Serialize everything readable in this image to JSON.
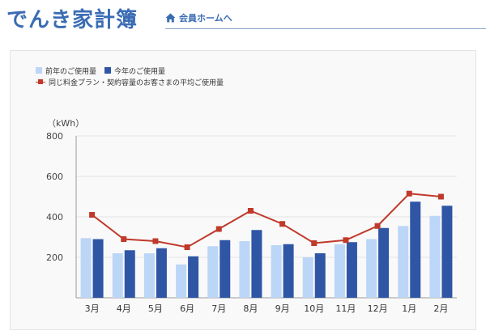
{
  "app": {
    "title": "でんき家計簿",
    "member_link": "会員ホームへ",
    "home_icon": "home-icon"
  },
  "colors": {
    "brand": "#3a6cb4",
    "prev_year": "#bcd6f7",
    "this_year": "#2f56a5",
    "average": "#c0392b"
  },
  "chart_data": {
    "type": "bar",
    "unit_label": "（kWh）",
    "categories": [
      "3月",
      "4月",
      "5月",
      "6月",
      "7月",
      "8月",
      "9月",
      "10月",
      "11月",
      "12月",
      "1月",
      "2月"
    ],
    "ylim": [
      0,
      800
    ],
    "yticks": [
      200,
      400,
      600,
      800
    ],
    "grid": true,
    "legend_position": "top-left",
    "series": [
      {
        "name": "前年のご使用量",
        "kind": "bar",
        "values": [
          295,
          220,
          220,
          165,
          255,
          280,
          260,
          200,
          265,
          290,
          355,
          405
        ]
      },
      {
        "name": "今年のご使用量",
        "kind": "bar",
        "values": [
          290,
          235,
          245,
          205,
          285,
          335,
          265,
          220,
          275,
          345,
          475,
          455
        ]
      },
      {
        "name": "同じ料金プラン・契約容量のお客さまの平均ご使用量",
        "kind": "line",
        "values": [
          410,
          290,
          280,
          250,
          340,
          430,
          365,
          270,
          285,
          355,
          515,
          500
        ]
      }
    ]
  }
}
